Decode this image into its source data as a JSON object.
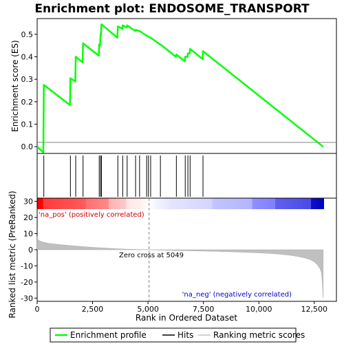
{
  "chart_data": {
    "type": "line",
    "title": "Enrichment plot: ENDOSOME_TRANSPORT",
    "xlabel": "Rank in Ordered Dataset",
    "ylabel_top": "Enrichment score (ES)",
    "ylabel_bottom": "Ranked list metric (PreRanked)",
    "xlim": [
      0,
      13500
    ],
    "xticks": [
      0,
      2500,
      5000,
      7500,
      10000,
      12500
    ],
    "xtick_labels": [
      "0",
      "2,500",
      "5,000",
      "7,500",
      "10,000",
      "12,500"
    ],
    "es_ylim": [
      -0.03,
      0.57
    ],
    "es_yticks": [
      0.0,
      0.1,
      0.2,
      0.3,
      0.4,
      0.5
    ],
    "es_ytick_labels": [
      "0.0",
      "0.1",
      "0.2",
      "0.3",
      "0.4",
      "0.5"
    ],
    "metric_ylim": [
      -32,
      32
    ],
    "metric_yticks": [
      -30,
      -20,
      -10,
      0,
      10,
      20,
      30
    ],
    "metric_ytick_labels": [
      "-30",
      "-20",
      "-10",
      "0",
      "10",
      "20",
      "30"
    ],
    "n_genes": 12900,
    "zero_cross": 5049,
    "annotations": {
      "positive": "'na_pos' (positively correlated)",
      "negative": "'na_neg' (negatively correlated)",
      "zero_cross": "Zero cross at 5049"
    },
    "colors": {
      "enrichment": "#00ff00",
      "hits": "#000000",
      "metric": "#c0c0c0",
      "positive_label": "#cc0000",
      "negative_label": "#0000cc",
      "zero_line": "#808080"
    },
    "series": [
      {
        "name": "Enrichment profile",
        "x": [
          0,
          280,
          300,
          1480,
          1500,
          1720,
          1740,
          2050,
          2070,
          2780,
          2800,
          2840,
          2860,
          2880,
          2900,
          3620,
          3640,
          3840,
          3860,
          4040,
          4060,
          4420,
          4440,
          4600,
          4620,
          4920,
          4940,
          5000,
          5020,
          5100,
          5120,
          5540,
          5560,
          6260,
          6280,
          6660,
          6680,
          6780,
          6800,
          6880,
          6900,
          7460,
          7480,
          12900
        ],
        "y": [
          0.0,
          -0.025,
          0.275,
          0.185,
          0.305,
          0.29,
          0.4,
          0.375,
          0.46,
          0.405,
          0.455,
          0.45,
          0.5,
          0.495,
          0.545,
          0.485,
          0.535,
          0.525,
          0.54,
          0.53,
          0.54,
          0.515,
          0.52,
          0.515,
          0.515,
          0.495,
          0.495,
          0.49,
          0.49,
          0.485,
          0.485,
          0.455,
          0.455,
          0.4,
          0.41,
          0.38,
          0.4,
          0.4,
          0.415,
          0.415,
          0.435,
          0.39,
          0.425,
          0.0
        ]
      },
      {
        "name": "Hits",
        "x": [
          300,
          1500,
          1740,
          2070,
          2800,
          2860,
          2900,
          3640,
          3860,
          4060,
          4440,
          4620,
          4940,
          5020,
          5120,
          5560,
          6280,
          6680,
          6800,
          6900,
          7480
        ]
      },
      {
        "name": "Ranking metric scores",
        "x": [
          0,
          50,
          200,
          500,
          1000,
          1500,
          2000,
          2500,
          3000,
          3500,
          4000,
          4500,
          5049,
          5500,
          6000,
          7000,
          8000,
          9000,
          10000,
          10500,
          11000,
          11500,
          12000,
          12300,
          12500,
          12650,
          12750,
          12820,
          12860,
          12900
        ],
        "y": [
          8.0,
          6.0,
          5.0,
          4.0,
          3.2,
          2.6,
          2.0,
          1.5,
          1.1,
          0.7,
          0.4,
          0.2,
          0.0,
          -0.2,
          -0.4,
          -0.7,
          -1.0,
          -1.4,
          -1.9,
          -2.3,
          -2.8,
          -3.6,
          -4.8,
          -6.0,
          -7.5,
          -9.5,
          -11.5,
          -14.0,
          -20.0,
          -30.0
        ]
      }
    ],
    "legend": {
      "placement": "bottom",
      "entries": [
        "Enrichment profile",
        "Hits",
        "Ranking metric scores"
      ]
    }
  }
}
